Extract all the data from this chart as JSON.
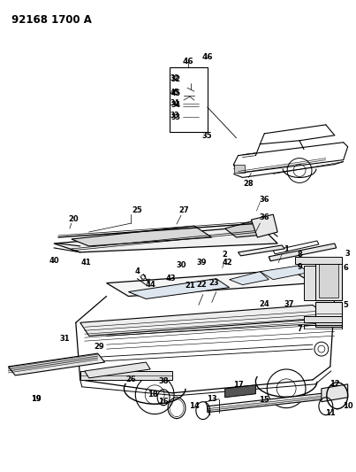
{
  "title": "92168 1700 A",
  "bg_color": "#ffffff",
  "figsize": [
    4.03,
    5.33
  ],
  "dpi": 100,
  "label_fontsize": 6.0,
  "title_fontsize": 8.5
}
